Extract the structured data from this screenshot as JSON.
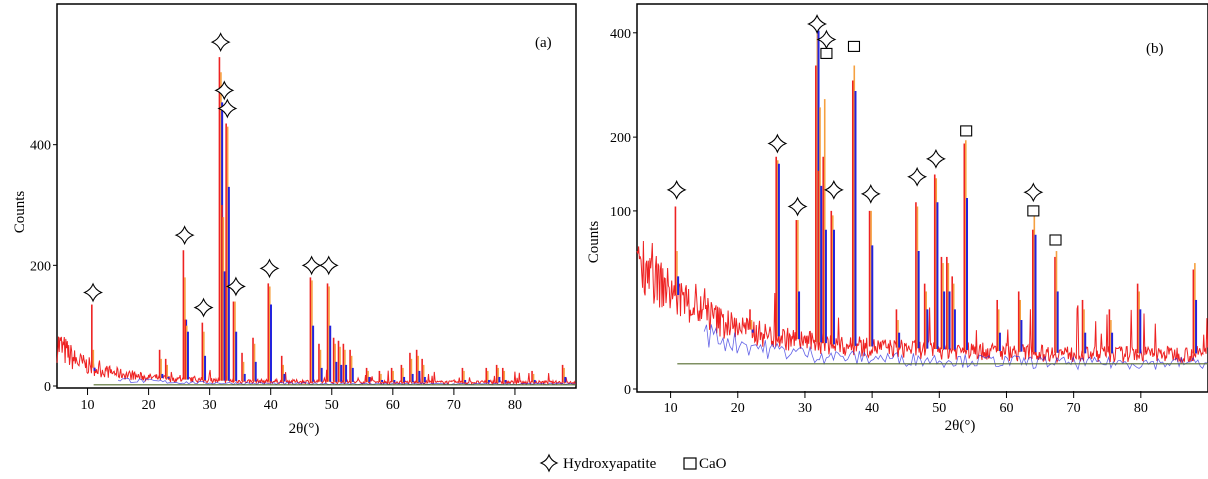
{
  "legend": {
    "hydroxyapatite_label": "Hydroxyapatite",
    "cao_label": "CaO",
    "hydroxyapatite_icon": "four-point-star-icon",
    "cao_icon": "open-square-icon"
  },
  "colors": {
    "red_trace": "#ee2222",
    "orange_trace": "#f5a040",
    "blue_trace": "#2222dd",
    "baseline": "#556b2f"
  },
  "chart_data": [
    {
      "type": "line",
      "panel_label": "(a)",
      "xlabel": "2θ(°)",
      "ylabel": "Counts",
      "xlim": [
        5,
        90
      ],
      "ylim": [
        0,
        600
      ],
      "x_ticks": [
        10,
        20,
        30,
        40,
        50,
        60,
        70,
        80
      ],
      "y_ticks": [
        0,
        200,
        400
      ],
      "background": [
        {
          "x": 5,
          "y": 70
        },
        {
          "x": 8,
          "y": 42
        },
        {
          "x": 12,
          "y": 26
        },
        {
          "x": 18,
          "y": 16
        },
        {
          "x": 25,
          "y": 11
        },
        {
          "x": 35,
          "y": 8
        },
        {
          "x": 50,
          "y": 7
        },
        {
          "x": 70,
          "y": 6
        },
        {
          "x": 90,
          "y": 6
        }
      ],
      "peaks": [
        {
          "x": 10.9,
          "red": 135,
          "orange": 60,
          "blue": 25
        },
        {
          "x": 22.0,
          "red": 60,
          "orange": 45,
          "blue": 20
        },
        {
          "x": 23.0,
          "red": 45,
          "orange": 35,
          "blue": 15
        },
        {
          "x": 25.9,
          "red": 225,
          "orange": 180,
          "blue": 110
        },
        {
          "x": 26.2,
          "red": 110,
          "orange": 100,
          "blue": 90
        },
        {
          "x": 29.0,
          "red": 105,
          "orange": 90,
          "blue": 50
        },
        {
          "x": 31.8,
          "red": 545,
          "orange": 520,
          "blue": 470
        },
        {
          "x": 32.2,
          "red": 300,
          "orange": 280,
          "blue": 190
        },
        {
          "x": 32.9,
          "red": 435,
          "orange": 430,
          "blue": 330
        },
        {
          "x": 34.1,
          "red": 140,
          "orange": 140,
          "blue": 90
        },
        {
          "x": 35.5,
          "red": 55,
          "orange": 40,
          "blue": 20
        },
        {
          "x": 37.3,
          "red": 80,
          "orange": 70,
          "blue": 40
        },
        {
          "x": 39.8,
          "red": 170,
          "orange": 165,
          "blue": 135
        },
        {
          "x": 42.0,
          "red": 50,
          "orange": 35,
          "blue": 20
        },
        {
          "x": 46.7,
          "red": 180,
          "orange": 175,
          "blue": 100
        },
        {
          "x": 48.1,
          "red": 70,
          "orange": 60,
          "blue": 30
        },
        {
          "x": 49.5,
          "red": 170,
          "orange": 165,
          "blue": 100
        },
        {
          "x": 50.5,
          "red": 80,
          "orange": 70,
          "blue": 40
        },
        {
          "x": 51.3,
          "red": 75,
          "orange": 65,
          "blue": 35
        },
        {
          "x": 52.1,
          "red": 70,
          "orange": 60,
          "blue": 35
        },
        {
          "x": 53.2,
          "red": 60,
          "orange": 50,
          "blue": 30
        },
        {
          "x": 55.9,
          "red": 30,
          "orange": 25,
          "blue": 15
        },
        {
          "x": 58.0,
          "red": 25,
          "orange": 20,
          "blue": 10
        },
        {
          "x": 60.0,
          "red": 30,
          "orange": 25,
          "blue": 10
        },
        {
          "x": 61.6,
          "red": 35,
          "orange": 30,
          "blue": 15
        },
        {
          "x": 63.0,
          "red": 55,
          "orange": 45,
          "blue": 20
        },
        {
          "x": 64.1,
          "red": 60,
          "orange": 50,
          "blue": 25
        },
        {
          "x": 65.0,
          "red": 45,
          "orange": 35,
          "blue": 15
        },
        {
          "x": 71.6,
          "red": 30,
          "orange": 25,
          "blue": 10
        },
        {
          "x": 75.5,
          "red": 30,
          "orange": 25,
          "blue": 10
        },
        {
          "x": 77.2,
          "red": 35,
          "orange": 30,
          "blue": 15
        },
        {
          "x": 78.2,
          "red": 30,
          "orange": 25,
          "blue": 10
        },
        {
          "x": 83.0,
          "red": 25,
          "orange": 20,
          "blue": 10
        },
        {
          "x": 88.0,
          "red": 35,
          "orange": 30,
          "blue": 15
        }
      ],
      "markers": [
        {
          "x": 10.9,
          "y": 155,
          "symbol": "hydroxyapatite"
        },
        {
          "x": 25.9,
          "y": 250,
          "symbol": "hydroxyapatite"
        },
        {
          "x": 29.0,
          "y": 130,
          "symbol": "hydroxyapatite"
        },
        {
          "x": 31.8,
          "y": 570,
          "symbol": "hydroxyapatite"
        },
        {
          "x": 32.4,
          "y": 490,
          "symbol": "hydroxyapatite"
        },
        {
          "x": 32.9,
          "y": 460,
          "symbol": "hydroxyapatite"
        },
        {
          "x": 34.3,
          "y": 165,
          "symbol": "hydroxyapatite"
        },
        {
          "x": 39.8,
          "y": 195,
          "symbol": "hydroxyapatite"
        },
        {
          "x": 46.7,
          "y": 200,
          "symbol": "hydroxyapatite"
        },
        {
          "x": 49.5,
          "y": 200,
          "symbol": "hydroxyapatite"
        }
      ]
    },
    {
      "type": "line",
      "panel_label": "(b)",
      "xlabel": "2θ(°)",
      "ylabel": "Counts",
      "scale": "sqrt",
      "xlim": [
        5,
        90
      ],
      "ylim": [
        0,
        420
      ],
      "x_ticks": [
        10,
        20,
        30,
        40,
        50,
        60,
        70,
        80
      ],
      "y_ticks": [
        0,
        100,
        200,
        400
      ],
      "background": [
        {
          "x": 5,
          "y": 58
        },
        {
          "x": 8,
          "y": 38
        },
        {
          "x": 12,
          "y": 24
        },
        {
          "x": 18,
          "y": 14
        },
        {
          "x": 25,
          "y": 9
        },
        {
          "x": 35,
          "y": 6
        },
        {
          "x": 50,
          "y": 5
        },
        {
          "x": 70,
          "y": 4
        },
        {
          "x": 90,
          "y": 4
        }
      ],
      "peaks": [
        {
          "x": 10.9,
          "red": 105,
          "orange": 60,
          "blue": 40
        },
        {
          "x": 22.0,
          "red": 20,
          "orange": 15,
          "blue": 10
        },
        {
          "x": 25.9,
          "red": 170,
          "orange": 165,
          "blue": 160
        },
        {
          "x": 28.9,
          "red": 90,
          "orange": 90,
          "blue": 30
        },
        {
          "x": 31.8,
          "red": 330,
          "orange": 410,
          "blue": 405
        },
        {
          "x": 32.2,
          "red": 150,
          "orange": 250,
          "blue": 130
        },
        {
          "x": 32.9,
          "red": 170,
          "orange": 265,
          "blue": 80
        },
        {
          "x": 34.1,
          "red": 100,
          "orange": 95,
          "blue": 80
        },
        {
          "x": 37.3,
          "red": 300,
          "orange": 330,
          "blue": 280
        },
        {
          "x": 39.8,
          "red": 100,
          "orange": 100,
          "blue": 65
        },
        {
          "x": 43.8,
          "red": 20,
          "orange": 15,
          "blue": 10
        },
        {
          "x": 46.7,
          "red": 110,
          "orange": 105,
          "blue": 60
        },
        {
          "x": 48.0,
          "red": 35,
          "orange": 30,
          "blue": 20
        },
        {
          "x": 49.5,
          "red": 145,
          "orange": 140,
          "blue": 110
        },
        {
          "x": 50.5,
          "red": 55,
          "orange": 50,
          "blue": 30
        },
        {
          "x": 51.3,
          "red": 55,
          "orange": 50,
          "blue": 30
        },
        {
          "x": 52.1,
          "red": 40,
          "orange": 35,
          "blue": 20
        },
        {
          "x": 53.9,
          "red": 190,
          "orange": 195,
          "blue": 115
        },
        {
          "x": 58.8,
          "red": 25,
          "orange": 20,
          "blue": 10
        },
        {
          "x": 62.0,
          "red": 30,
          "orange": 25,
          "blue": 15
        },
        {
          "x": 64.1,
          "red": 80,
          "orange": 95,
          "blue": 75
        },
        {
          "x": 67.4,
          "red": 55,
          "orange": 60,
          "blue": 30
        },
        {
          "x": 71.5,
          "red": 25,
          "orange": 20,
          "blue": 10
        },
        {
          "x": 75.5,
          "red": 20,
          "orange": 15,
          "blue": 10
        },
        {
          "x": 79.7,
          "red": 35,
          "orange": 30,
          "blue": 20
        },
        {
          "x": 88.0,
          "red": 45,
          "orange": 50,
          "blue": 25
        }
      ],
      "markers": [
        {
          "x": 10.9,
          "y": 125,
          "symbol": "hydroxyapatite"
        },
        {
          "x": 25.9,
          "y": 190,
          "symbol": "hydroxyapatite"
        },
        {
          "x": 28.9,
          "y": 105,
          "symbol": "hydroxyapatite"
        },
        {
          "x": 31.8,
          "y": 420,
          "symbol": "hydroxyapatite"
        },
        {
          "x": 33.2,
          "y": 385,
          "symbol": "hydroxyapatite"
        },
        {
          "x": 33.2,
          "y": 355,
          "symbol": "cao"
        },
        {
          "x": 34.3,
          "y": 125,
          "symbol": "hydroxyapatite"
        },
        {
          "x": 37.3,
          "y": 370,
          "symbol": "cao"
        },
        {
          "x": 39.8,
          "y": 120,
          "symbol": "hydroxyapatite"
        },
        {
          "x": 46.7,
          "y": 142,
          "symbol": "hydroxyapatite"
        },
        {
          "x": 49.5,
          "y": 167,
          "symbol": "hydroxyapatite"
        },
        {
          "x": 54.0,
          "y": 210,
          "symbol": "cao"
        },
        {
          "x": 64.0,
          "y": 122,
          "symbol": "hydroxyapatite"
        },
        {
          "x": 64.0,
          "y": 100,
          "symbol": "cao"
        },
        {
          "x": 67.3,
          "y": 70,
          "symbol": "cao"
        }
      ]
    }
  ]
}
